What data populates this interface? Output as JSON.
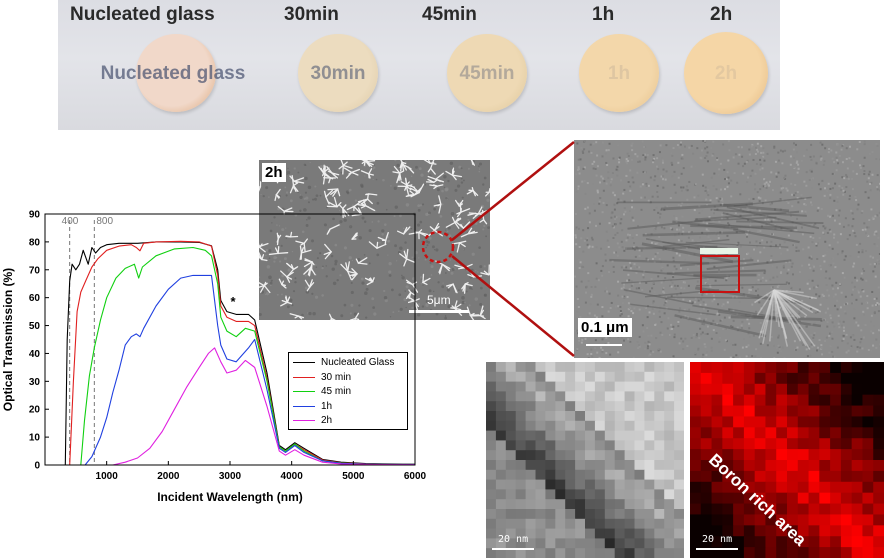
{
  "photos": {
    "samples": [
      {
        "label": "Nucleated glass",
        "disc_text": "Nucleated glass",
        "fill": "#f1d8c9",
        "rim": "#d9a170"
      },
      {
        "label": "30min",
        "disc_text": "30min",
        "fill": "#ecdcbf",
        "rim": "#dcc7a1"
      },
      {
        "label": "45min",
        "disc_text": "45min",
        "fill": "#eed9b4",
        "rim": "#dcc495"
      },
      {
        "label": "1h",
        "disc_text": "1h",
        "fill": "#f3d7aa",
        "rim": "#e4be86"
      },
      {
        "label": "2h",
        "disc_text": "2h",
        "fill": "#f5d6a6",
        "rim": "#e1b47a"
      }
    ]
  },
  "sem": {
    "tag": "2h",
    "scale_label": "5μm"
  },
  "tem": {
    "scale_label": "0.1 μm"
  },
  "eels": {
    "gray_scale_label": "20 nm",
    "red_scale_label": "20 nm",
    "annotation": "Boron rich area"
  },
  "chart_data": {
    "type": "line",
    "xlabel": "Incident Wavelength (nm)",
    "ylabel": "Optical Transmission (%)",
    "xlim": [
      0,
      6000
    ],
    "ylim": [
      0,
      90
    ],
    "xticks": [
      1000,
      2000,
      3000,
      4000,
      5000,
      6000
    ],
    "yticks": [
      0,
      10,
      20,
      30,
      40,
      50,
      60,
      70,
      80,
      90
    ],
    "reference_lines": [
      {
        "x": 400,
        "label": "400"
      },
      {
        "x": 800,
        "label": "800"
      }
    ],
    "annotation": {
      "text": "*",
      "x": 3050,
      "y": 57
    },
    "legend_position": "right",
    "series": [
      {
        "name": "Nucleated Glass",
        "color": "#000000",
        "points": [
          [
            330,
            0
          ],
          [
            360,
            45
          ],
          [
            400,
            66
          ],
          [
            440,
            72
          ],
          [
            500,
            70
          ],
          [
            560,
            72
          ],
          [
            620,
            77
          ],
          [
            700,
            72
          ],
          [
            760,
            78
          ],
          [
            820,
            76
          ],
          [
            900,
            78
          ],
          [
            1000,
            79
          ],
          [
            1200,
            79.5
          ],
          [
            1500,
            79.5
          ],
          [
            1800,
            80
          ],
          [
            2200,
            80
          ],
          [
            2500,
            79.8
          ],
          [
            2700,
            78.6
          ],
          [
            2800,
            70
          ],
          [
            2850,
            59
          ],
          [
            2950,
            55
          ],
          [
            3100,
            54
          ],
          [
            3300,
            54
          ],
          [
            3400,
            52
          ],
          [
            3600,
            33
          ],
          [
            3800,
            7
          ],
          [
            3900,
            5.5
          ],
          [
            4050,
            8
          ],
          [
            4200,
            6
          ],
          [
            4500,
            2
          ],
          [
            4800,
            1
          ],
          [
            5200,
            0.5
          ],
          [
            6000,
            0.3
          ]
        ]
      },
      {
        "name": "30 min",
        "color": "#e02020",
        "points": [
          [
            400,
            0
          ],
          [
            460,
            30
          ],
          [
            520,
            55
          ],
          [
            580,
            62
          ],
          [
            660,
            66
          ],
          [
            760,
            71
          ],
          [
            860,
            74
          ],
          [
            1000,
            77
          ],
          [
            1200,
            78.5
          ],
          [
            1400,
            79
          ],
          [
            1480,
            78
          ],
          [
            1540,
            76.8
          ],
          [
            1600,
            79.5
          ],
          [
            1800,
            80
          ],
          [
            2200,
            80.2
          ],
          [
            2500,
            80
          ],
          [
            2700,
            78.5
          ],
          [
            2800,
            68
          ],
          [
            2850,
            57
          ],
          [
            2950,
            53
          ],
          [
            3100,
            51.5
          ],
          [
            3300,
            51.5
          ],
          [
            3400,
            50
          ],
          [
            3600,
            31
          ],
          [
            3800,
            6.5
          ],
          [
            3900,
            5
          ],
          [
            4050,
            7.5
          ],
          [
            4200,
            5.5
          ],
          [
            4500,
            1.8
          ],
          [
            4800,
            0.8
          ],
          [
            5200,
            0.4
          ],
          [
            6000,
            0.2
          ]
        ]
      },
      {
        "name": "45 min",
        "color": "#10d010",
        "points": [
          [
            580,
            0
          ],
          [
            640,
            16
          ],
          [
            720,
            32
          ],
          [
            800,
            42
          ],
          [
            900,
            52
          ],
          [
            1000,
            60
          ],
          [
            1150,
            67
          ],
          [
            1300,
            70.5
          ],
          [
            1450,
            72
          ],
          [
            1520,
            67
          ],
          [
            1580,
            71
          ],
          [
            1800,
            75
          ],
          [
            2100,
            77.5
          ],
          [
            2400,
            78
          ],
          [
            2600,
            77
          ],
          [
            2700,
            75
          ],
          [
            2800,
            65
          ],
          [
            2850,
            53
          ],
          [
            2950,
            48
          ],
          [
            3100,
            46
          ],
          [
            3250,
            49
          ],
          [
            3400,
            48
          ],
          [
            3600,
            30
          ],
          [
            3800,
            6.5
          ],
          [
            3900,
            5
          ],
          [
            4050,
            7.5
          ],
          [
            4200,
            5
          ],
          [
            4500,
            1.5
          ],
          [
            4800,
            0.7
          ],
          [
            5200,
            0.3
          ],
          [
            6000,
            0.2
          ]
        ]
      },
      {
        "name": "1h",
        "color": "#2040e0",
        "points": [
          [
            650,
            0
          ],
          [
            760,
            3
          ],
          [
            900,
            10
          ],
          [
            1000,
            17
          ],
          [
            1100,
            26
          ],
          [
            1200,
            34
          ],
          [
            1300,
            43
          ],
          [
            1400,
            46
          ],
          [
            1480,
            47
          ],
          [
            1540,
            46
          ],
          [
            1600,
            49
          ],
          [
            1800,
            57
          ],
          [
            2000,
            63
          ],
          [
            2200,
            67
          ],
          [
            2400,
            68
          ],
          [
            2700,
            68
          ],
          [
            2800,
            50
          ],
          [
            2850,
            43
          ],
          [
            2950,
            38
          ],
          [
            3100,
            37
          ],
          [
            3300,
            42
          ],
          [
            3400,
            45
          ],
          [
            3600,
            27
          ],
          [
            3800,
            6
          ],
          [
            3900,
            4.5
          ],
          [
            4050,
            7
          ],
          [
            4200,
            4.5
          ],
          [
            4500,
            1.5
          ],
          [
            4800,
            0.6
          ],
          [
            5200,
            0.3
          ],
          [
            6000,
            0.2
          ]
        ]
      },
      {
        "name": "2h",
        "color": "#e020e0",
        "points": [
          [
            1100,
            0
          ],
          [
            1300,
            1
          ],
          [
            1500,
            2.5
          ],
          [
            1700,
            6
          ],
          [
            1900,
            12
          ],
          [
            2100,
            20
          ],
          [
            2300,
            28
          ],
          [
            2500,
            35
          ],
          [
            2650,
            40
          ],
          [
            2750,
            42
          ],
          [
            2850,
            37
          ],
          [
            2950,
            33
          ],
          [
            3100,
            34
          ],
          [
            3250,
            37.5
          ],
          [
            3400,
            35
          ],
          [
            3600,
            21
          ],
          [
            3800,
            5
          ],
          [
            3900,
            3.5
          ],
          [
            4050,
            5.5
          ],
          [
            4200,
            3.5
          ],
          [
            4500,
            1
          ],
          [
            4800,
            0.4
          ],
          [
            5200,
            0.2
          ],
          [
            6000,
            0.1
          ]
        ]
      }
    ]
  }
}
